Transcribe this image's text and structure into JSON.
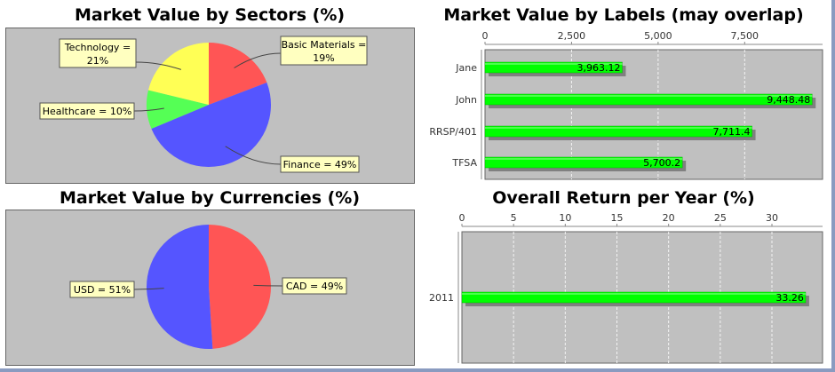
{
  "chart_data": [
    {
      "id": "sectors",
      "type": "pie",
      "title": "Market Value by Sectors (%)",
      "slices": [
        {
          "label": "Basic Materials = 19%",
          "label_lines": [
            "Basic Materials =",
            "19%"
          ],
          "value": 19,
          "color": "#ff5555"
        },
        {
          "label": "Finance = 49%",
          "label_lines": [
            "Finance = 49%"
          ],
          "value": 49,
          "color": "#5555ff"
        },
        {
          "label": "Healthcare = 10%",
          "label_lines": [
            "Healthcare = 10%"
          ],
          "value": 10,
          "color": "#55ff55"
        },
        {
          "label": "Technology = 21%",
          "label_lines": [
            "Technology =",
            "21%"
          ],
          "value": 21,
          "color": "#ffff55"
        }
      ]
    },
    {
      "id": "currencies",
      "type": "pie",
      "title": "Market Value by Currencies (%)",
      "slices": [
        {
          "label": "CAD = 49%",
          "label_lines": [
            "CAD = 49%"
          ],
          "value": 49,
          "color": "#ff5555"
        },
        {
          "label": "USD = 51%",
          "label_lines": [
            "USD = 51%"
          ],
          "value": 51,
          "color": "#5555ff"
        }
      ]
    },
    {
      "id": "labels",
      "type": "bar",
      "orientation": "horizontal",
      "title": "Market Value by Labels (may overlap)",
      "categories": [
        "Jane",
        "John",
        "RRSP/401",
        "TFSA"
      ],
      "values": [
        3963.12,
        9448.48,
        7711.4,
        5700.2
      ],
      "value_labels": [
        "3,963.12",
        "9,448.48",
        "7,711.4",
        "5,700.2"
      ],
      "xlim": [
        0,
        9750
      ],
      "ticks": [
        0,
        2500,
        5000,
        7500
      ],
      "tick_labels": [
        "0",
        "2,500",
        "5,000",
        "7,500"
      ],
      "axis_position": "top",
      "grid": true,
      "bar_color": "#00ff00"
    },
    {
      "id": "returns",
      "type": "bar",
      "orientation": "horizontal",
      "title": "Overall Return per Year (%)",
      "categories": [
        "2011"
      ],
      "values": [
        33.26
      ],
      "value_labels": [
        "33.26"
      ],
      "xlim": [
        0,
        34.9
      ],
      "ticks": [
        0,
        5,
        10,
        15,
        20,
        25,
        30
      ],
      "tick_labels": [
        "0",
        "5",
        "10",
        "15",
        "20",
        "25",
        "30"
      ],
      "axis_position": "top",
      "grid": true,
      "bar_color": "#00ff00"
    }
  ]
}
